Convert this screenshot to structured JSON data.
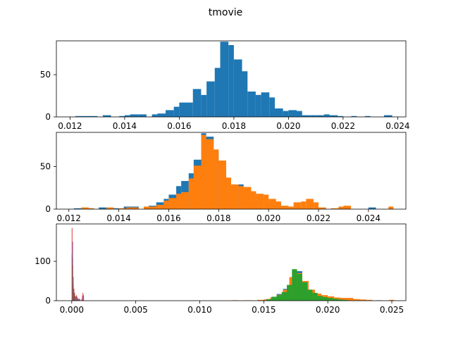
{
  "figure": {
    "suptitle": "tmovie"
  },
  "colors": {
    "c0": "#1f77b4",
    "c1": "#ff7f0e",
    "c2": "#2ca02c",
    "c3": "#d62728",
    "c4": "#9467bd",
    "c5": "#8c564b"
  },
  "chart_data": [
    {
      "type": "bar",
      "title": "",
      "xlabel": "",
      "ylabel": "",
      "xlim": [
        0.0115,
        0.0243
      ],
      "ylim": [
        0,
        90
      ],
      "xticks": [
        "0.012",
        "0.014",
        "0.016",
        "0.018",
        "0.020",
        "0.022",
        "0.024"
      ],
      "yticks": [
        "0",
        "50"
      ],
      "series": [
        {
          "color": "c0",
          "bins": [
            [
              0.0122,
              0.0125,
              1
            ],
            [
              0.0125,
              0.0128,
              1
            ],
            [
              0.0128,
              0.013,
              1
            ],
            [
              0.0132,
              0.0135,
              2
            ],
            [
              0.0138,
              0.014,
              1
            ],
            [
              0.014,
              0.0142,
              2
            ],
            [
              0.0142,
              0.0145,
              3
            ],
            [
              0.0145,
              0.0148,
              3
            ],
            [
              0.015,
              0.0152,
              3
            ],
            [
              0.0152,
              0.0155,
              4
            ],
            [
              0.0155,
              0.0158,
              8
            ],
            [
              0.0158,
              0.016,
              12
            ],
            [
              0.016,
              0.0163,
              17
            ],
            [
              0.0163,
              0.0165,
              17
            ],
            [
              0.0165,
              0.0168,
              33
            ],
            [
              0.0168,
              0.017,
              26
            ],
            [
              0.017,
              0.0173,
              42
            ],
            [
              0.0173,
              0.0175,
              58
            ],
            [
              0.0175,
              0.0178,
              89
            ],
            [
              0.0178,
              0.018,
              85
            ],
            [
              0.018,
              0.0183,
              68
            ],
            [
              0.0183,
              0.0185,
              54
            ],
            [
              0.0185,
              0.0188,
              30
            ],
            [
              0.0188,
              0.019,
              26
            ],
            [
              0.019,
              0.0193,
              29
            ],
            [
              0.0193,
              0.0195,
              23
            ],
            [
              0.0195,
              0.0198,
              10
            ],
            [
              0.0198,
              0.02,
              7
            ],
            [
              0.02,
              0.0203,
              8
            ],
            [
              0.0203,
              0.0205,
              7
            ],
            [
              0.0205,
              0.0208,
              2
            ],
            [
              0.0208,
              0.021,
              2
            ],
            [
              0.021,
              0.0213,
              2
            ],
            [
              0.0213,
              0.0215,
              3
            ],
            [
              0.0215,
              0.0218,
              2
            ],
            [
              0.0218,
              0.022,
              1
            ],
            [
              0.0223,
              0.0225,
              1
            ],
            [
              0.0228,
              0.023,
              1
            ],
            [
              0.0235,
              0.0238,
              2
            ]
          ]
        }
      ]
    },
    {
      "type": "bar",
      "title": "",
      "xlabel": "",
      "ylabel": "",
      "xlim": [
        0.0115,
        0.0255
      ],
      "ylim": [
        0,
        90
      ],
      "xticks": [
        "0.012",
        "0.014",
        "0.016",
        "0.018",
        "0.020",
        "0.022",
        "0.024"
      ],
      "yticks": [
        "0",
        "50"
      ],
      "series": [
        {
          "color": "c0",
          "bins": [
            [
              0.0122,
              0.0125,
              1
            ],
            [
              0.0128,
              0.013,
              1
            ],
            [
              0.0132,
              0.0135,
              2
            ],
            [
              0.0138,
              0.014,
              1
            ],
            [
              0.0142,
              0.0145,
              3
            ],
            [
              0.0145,
              0.0148,
              3
            ],
            [
              0.0152,
              0.0155,
              4
            ],
            [
              0.0155,
              0.0158,
              8
            ],
            [
              0.0158,
              0.016,
              12
            ],
            [
              0.016,
              0.0163,
              17
            ],
            [
              0.0163,
              0.0165,
              27
            ],
            [
              0.0165,
              0.0168,
              33
            ],
            [
              0.0168,
              0.017,
              42
            ],
            [
              0.017,
              0.0173,
              58
            ],
            [
              0.0173,
              0.0175,
              89
            ],
            [
              0.0175,
              0.0178,
              85
            ],
            [
              0.0178,
              0.018,
              68
            ],
            [
              0.018,
              0.0183,
              54
            ],
            [
              0.0183,
              0.0185,
              30
            ],
            [
              0.0185,
              0.0188,
              26
            ],
            [
              0.0188,
              0.019,
              29
            ],
            [
              0.019,
              0.0193,
              23
            ],
            [
              0.0193,
              0.0195,
              10
            ],
            [
              0.02,
              0.0203,
              8
            ],
            [
              0.0203,
              0.0205,
              7
            ],
            [
              0.024,
              0.0243,
              2
            ]
          ]
        },
        {
          "color": "c1",
          "bins": [
            [
              0.0125,
              0.0128,
              2
            ],
            [
              0.0128,
              0.013,
              1
            ],
            [
              0.0135,
              0.0138,
              2
            ],
            [
              0.014,
              0.0143,
              1
            ],
            [
              0.0143,
              0.0145,
              2
            ],
            [
              0.0145,
              0.0148,
              2
            ],
            [
              0.015,
              0.0153,
              3
            ],
            [
              0.0153,
              0.0155,
              3
            ],
            [
              0.0155,
              0.0158,
              5
            ],
            [
              0.0158,
              0.016,
              10
            ],
            [
              0.016,
              0.0163,
              13
            ],
            [
              0.0163,
              0.0165,
              18
            ],
            [
              0.0165,
              0.0168,
              20
            ],
            [
              0.0168,
              0.017,
              36
            ],
            [
              0.017,
              0.0173,
              51
            ],
            [
              0.0173,
              0.0175,
              87
            ],
            [
              0.0175,
              0.0178,
              82
            ],
            [
              0.0178,
              0.018,
              70
            ],
            [
              0.018,
              0.0183,
              57
            ],
            [
              0.0183,
              0.0185,
              37
            ],
            [
              0.0185,
              0.0188,
              29
            ],
            [
              0.0188,
              0.019,
              27
            ],
            [
              0.019,
              0.0193,
              26
            ],
            [
              0.0193,
              0.0195,
              21
            ],
            [
              0.0195,
              0.0198,
              18
            ],
            [
              0.0198,
              0.02,
              17
            ],
            [
              0.02,
              0.0203,
              12
            ],
            [
              0.0203,
              0.0205,
              9
            ],
            [
              0.0205,
              0.0208,
              4
            ],
            [
              0.0208,
              0.021,
              3
            ],
            [
              0.021,
              0.0213,
              8
            ],
            [
              0.0213,
              0.0215,
              9
            ],
            [
              0.0215,
              0.0218,
              12
            ],
            [
              0.0218,
              0.022,
              8
            ],
            [
              0.022,
              0.0223,
              2
            ],
            [
              0.0225,
              0.0228,
              1
            ],
            [
              0.0228,
              0.023,
              3
            ],
            [
              0.023,
              0.0233,
              4
            ],
            [
              0.0248,
              0.025,
              3
            ]
          ]
        }
      ]
    },
    {
      "type": "bar",
      "title": "",
      "xlabel": "",
      "ylabel": "",
      "xlim": [
        -0.0012,
        0.0261
      ],
      "ylim": [
        0,
        195
      ],
      "xticks": [
        "0.000",
        "0.005",
        "0.010",
        "0.015",
        "0.020",
        "0.025"
      ],
      "yticks": [
        "0",
        "100"
      ],
      "series": [
        {
          "color": "c0",
          "bins": [
            [
              0.015,
              0.0155,
              3
            ],
            [
              0.0155,
              0.016,
              7
            ],
            [
              0.016,
              0.0165,
              17
            ],
            [
              0.0165,
              0.017,
              30
            ],
            [
              0.017,
              0.0175,
              58
            ],
            [
              0.0175,
              0.018,
              75
            ],
            [
              0.018,
              0.0185,
              48
            ],
            [
              0.0185,
              0.019,
              25
            ],
            [
              0.019,
              0.0195,
              15
            ],
            [
              0.0195,
              0.02,
              10
            ],
            [
              0.02,
              0.0205,
              6
            ],
            [
              0.0205,
              0.021,
              4
            ],
            [
              0.021,
              0.0215,
              2
            ],
            [
              0.0215,
              0.022,
              1
            ],
            [
              0.0225,
              0.023,
              1
            ],
            [
              0.0238,
              0.0242,
              1
            ]
          ]
        },
        {
          "color": "c1",
          "bins": [
            [
              0.0125,
              0.013,
              1
            ],
            [
              0.0135,
              0.014,
              1
            ],
            [
              0.0145,
              0.015,
              2
            ],
            [
              0.015,
              0.0155,
              3
            ],
            [
              0.0155,
              0.016,
              8
            ],
            [
              0.016,
              0.0165,
              15
            ],
            [
              0.0165,
              0.017,
              28
            ],
            [
              0.017,
              0.0175,
              60
            ],
            [
              0.0175,
              0.018,
              70
            ],
            [
              0.018,
              0.0185,
              50
            ],
            [
              0.0185,
              0.019,
              28
            ],
            [
              0.019,
              0.0195,
              18
            ],
            [
              0.0195,
              0.02,
              14
            ],
            [
              0.02,
              0.0205,
              11
            ],
            [
              0.0205,
              0.021,
              8
            ],
            [
              0.021,
              0.0215,
              7
            ],
            [
              0.0215,
              0.022,
              7
            ],
            [
              0.022,
              0.0225,
              4
            ],
            [
              0.0225,
              0.023,
              3
            ],
            [
              0.023,
              0.0235,
              2
            ],
            [
              0.0248,
              0.0252,
              2
            ]
          ]
        },
        {
          "color": "c2",
          "bins": [
            [
              0.0152,
              0.0156,
              4
            ],
            [
              0.0156,
              0.016,
              10
            ],
            [
              0.016,
              0.0164,
              14
            ],
            [
              0.0164,
              0.0168,
              22
            ],
            [
              0.0168,
              0.0172,
              40
            ],
            [
              0.0172,
              0.0176,
              80
            ],
            [
              0.0176,
              0.018,
              68
            ],
            [
              0.018,
              0.0184,
              47
            ],
            [
              0.0184,
              0.0188,
              28
            ],
            [
              0.0188,
              0.0192,
              20
            ],
            [
              0.0192,
              0.0196,
              12
            ],
            [
              0.0196,
              0.02,
              9
            ],
            [
              0.02,
              0.0204,
              7
            ],
            [
              0.0204,
              0.0208,
              5
            ],
            [
              0.0208,
              0.0212,
              3
            ],
            [
              0.0212,
              0.0216,
              2
            ]
          ]
        },
        {
          "color": "c3",
          "bins": [
            [
              0.0,
              5e-05,
              185
            ],
            [
              5e-05,
              0.0001,
              110
            ],
            [
              0.0001,
              0.00015,
              45
            ],
            [
              0.00015,
              0.0002,
              30
            ],
            [
              0.0002,
              0.00025,
              20
            ],
            [
              0.00025,
              0.0003,
              12
            ],
            [
              0.0003,
              0.00035,
              10
            ],
            [
              0.00035,
              0.0004,
              14
            ],
            [
              0.0004,
              0.00045,
              8
            ],
            [
              0.00045,
              0.0005,
              6
            ],
            [
              0.0006,
              0.00065,
              5
            ],
            [
              0.00075,
              0.0008,
              4
            ],
            [
              0.00085,
              0.0009,
              20
            ],
            [
              0.0009,
              0.00095,
              14
            ]
          ]
        },
        {
          "color": "c4",
          "bins": [
            [
              5e-05,
              0.0001,
              150
            ],
            [
              0.0001,
              0.00015,
              60
            ],
            [
              0.00015,
              0.0002,
              25
            ],
            [
              0.0002,
              0.00025,
              15
            ],
            [
              0.0003,
              0.00035,
              8
            ],
            [
              0.0004,
              0.00045,
              10
            ],
            [
              0.0005,
              0.00055,
              5
            ],
            [
              0.0008,
              0.00085,
              12
            ]
          ]
        },
        {
          "color": "c5",
          "bins": [
            [
              0.0,
              5e-05,
              120
            ],
            [
              5e-05,
              0.0001,
              90
            ],
            [
              0.0001,
              0.00015,
              40
            ],
            [
              0.00015,
              0.0002,
              22
            ],
            [
              0.0002,
              0.00025,
              16
            ],
            [
              0.00025,
              0.0003,
              10
            ],
            [
              0.00035,
              0.0004,
              8
            ],
            [
              0.00045,
              0.0005,
              5
            ],
            [
              0.00055,
              0.0006,
              4
            ],
            [
              0.0009,
              0.00095,
              10
            ]
          ]
        }
      ]
    }
  ]
}
